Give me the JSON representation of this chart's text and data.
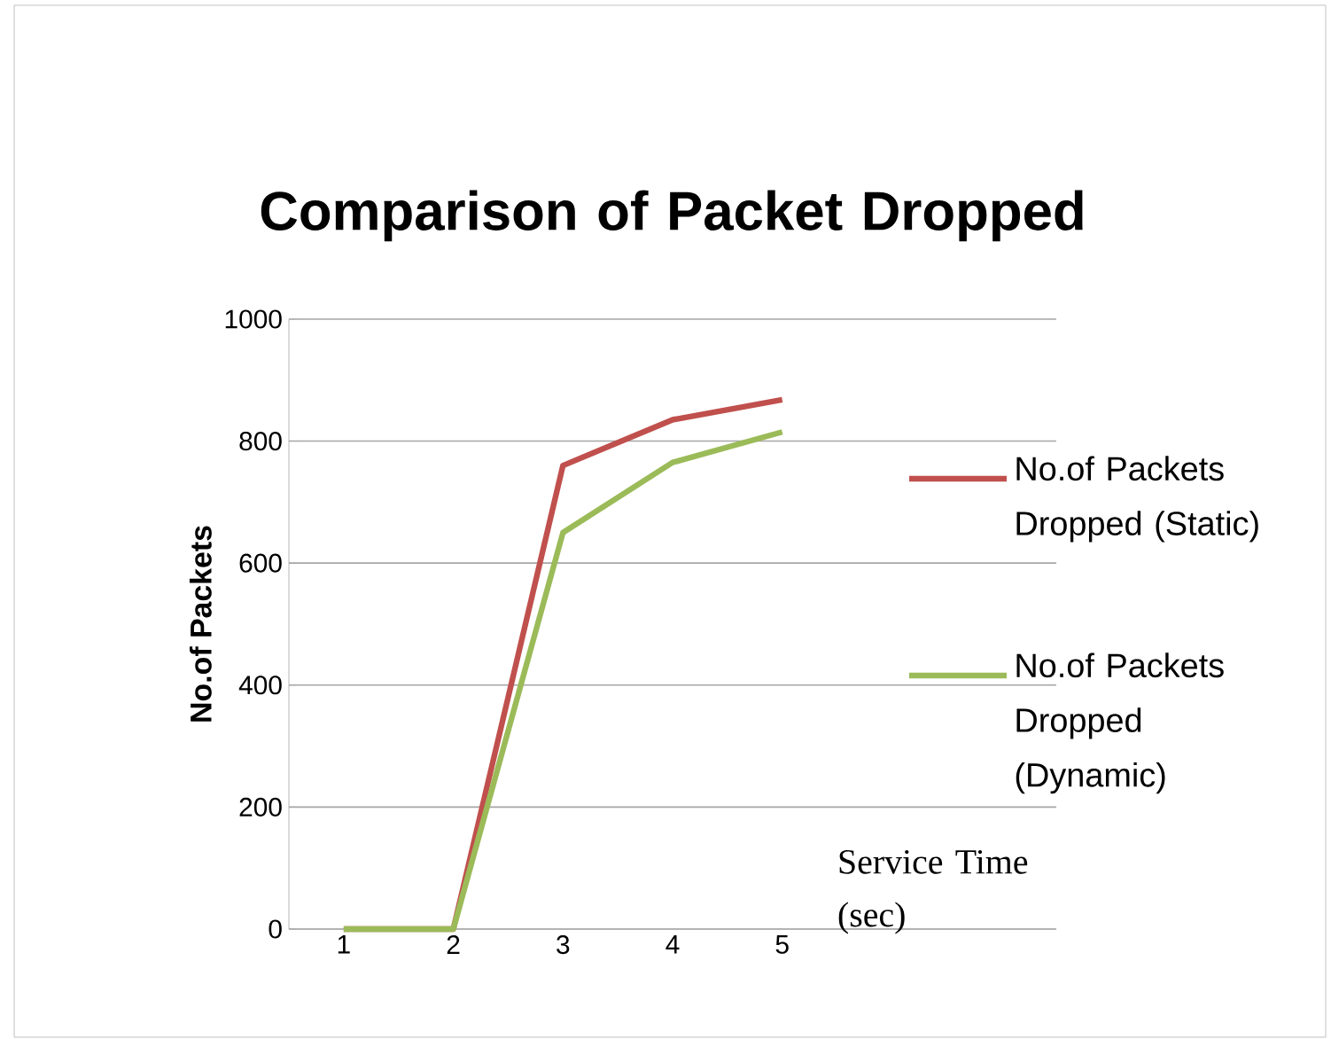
{
  "chart_data": {
    "type": "line",
    "title": "Comparison of Packet Dropped",
    "xlabel": "Service Time (sec)",
    "ylabel": "No.of Packets",
    "categories": [
      "1",
      "2",
      "3",
      "4",
      "5"
    ],
    "series": [
      {
        "name": "No.of Packets Dropped (Static)",
        "color": "#c0504d",
        "values": [
          0,
          0,
          760,
          835,
          868
        ]
      },
      {
        "name": "No.of Packets Dropped (Dynamic)",
        "color": "#9bbb59",
        "values": [
          0,
          0,
          650,
          765,
          815
        ]
      }
    ],
    "ylim": [
      0,
      1000
    ],
    "yticks": [
      0,
      200,
      400,
      600,
      800,
      1000
    ],
    "grid": "y",
    "legend": "right",
    "marker": "none",
    "line_style": "solid"
  }
}
